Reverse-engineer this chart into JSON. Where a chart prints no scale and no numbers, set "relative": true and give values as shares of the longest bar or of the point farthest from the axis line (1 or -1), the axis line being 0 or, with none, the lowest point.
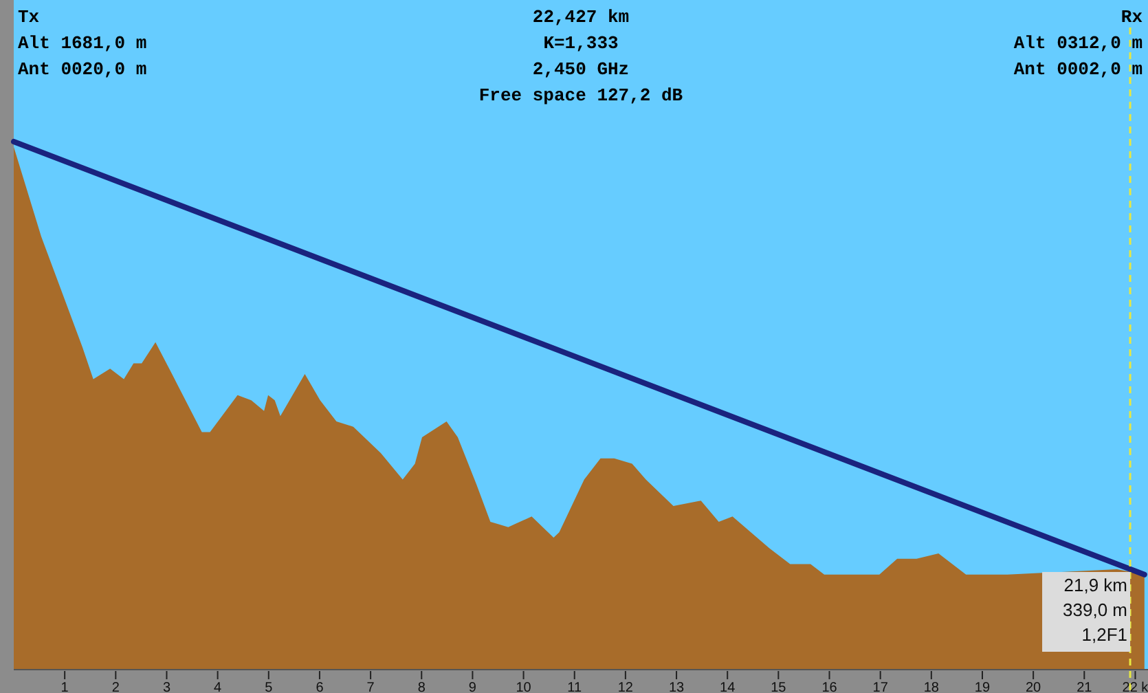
{
  "chart_data": {
    "type": "area",
    "title": "22,427 km",
    "relative": true,
    "annotations": [
      "Tx",
      "Alt 1681,0 m",
      "Ant 0020,0 m",
      "K=1,333",
      "2,450 GHz",
      "Free space 127,2 dB",
      "Rx",
      "Alt 0312,0 m",
      "Ant 0002,0 m",
      {
        "text": "21,9 km\n339,0 m\n1,2F1",
        "x": 21.9
      }
    ],
    "xlim": [
      0,
      22.25
    ],
    "xticks": [
      1,
      2,
      3,
      4,
      5,
      6,
      7,
      8,
      9,
      10,
      11,
      12,
      13,
      14,
      15,
      16,
      17,
      18,
      19,
      20,
      21,
      {
        "value": 22,
        "label": "22 k"
      }
    ],
    "grid": false,
    "ref_lines": [
      {
        "axis": "x",
        "value": 21.9,
        "color": "#e8e840",
        "line_style": "dashed"
      }
    ],
    "series": [
      {
        "color": "#a86c2a",
        "x": [
          0,
          0.54,
          1.35,
          1.56,
          1.89,
          2.16,
          2.35,
          2.51,
          2.78,
          3.05,
          3.69,
          3.85,
          4.39,
          4.66,
          4.91,
          4.99,
          5.12,
          5.23,
          5.71,
          6.01,
          6.33,
          6.66,
          7.2,
          7.63,
          7.87,
          8.01,
          8.49,
          8.71,
          9.08,
          9.35,
          9.7,
          10.16,
          10.59,
          10.7,
          11.19,
          11.51,
          11.78,
          12.13,
          12.4,
          12.94,
          13.48,
          13.83,
          14.1,
          14.82,
          15.23,
          15.63,
          15.9,
          16.98,
          17.33,
          17.71,
          18.14,
          18.68,
          19.49,
          21.64,
          22.18
        ],
        "values": [
          0.99,
          0.82,
          0.61,
          0.55,
          0.57,
          0.55,
          0.58,
          0.58,
          0.62,
          0.57,
          0.45,
          0.45,
          0.52,
          0.51,
          0.49,
          0.52,
          0.51,
          0.48,
          0.56,
          0.51,
          0.47,
          0.46,
          0.41,
          0.36,
          0.39,
          0.44,
          0.47,
          0.44,
          0.35,
          0.28,
          0.27,
          0.29,
          0.25,
          0.26,
          0.36,
          0.4,
          0.4,
          0.39,
          0.36,
          0.31,
          0.32,
          0.28,
          0.29,
          0.23,
          0.2,
          0.2,
          0.18,
          0.18,
          0.21,
          0.21,
          0.22,
          0.18,
          0.18,
          0.19,
          0.18
        ]
      },
      {
        "type": "line",
        "color": "#1a237e",
        "x": [
          0,
          22.18
        ],
        "values": [
          1,
          0.18
        ]
      }
    ]
  }
}
